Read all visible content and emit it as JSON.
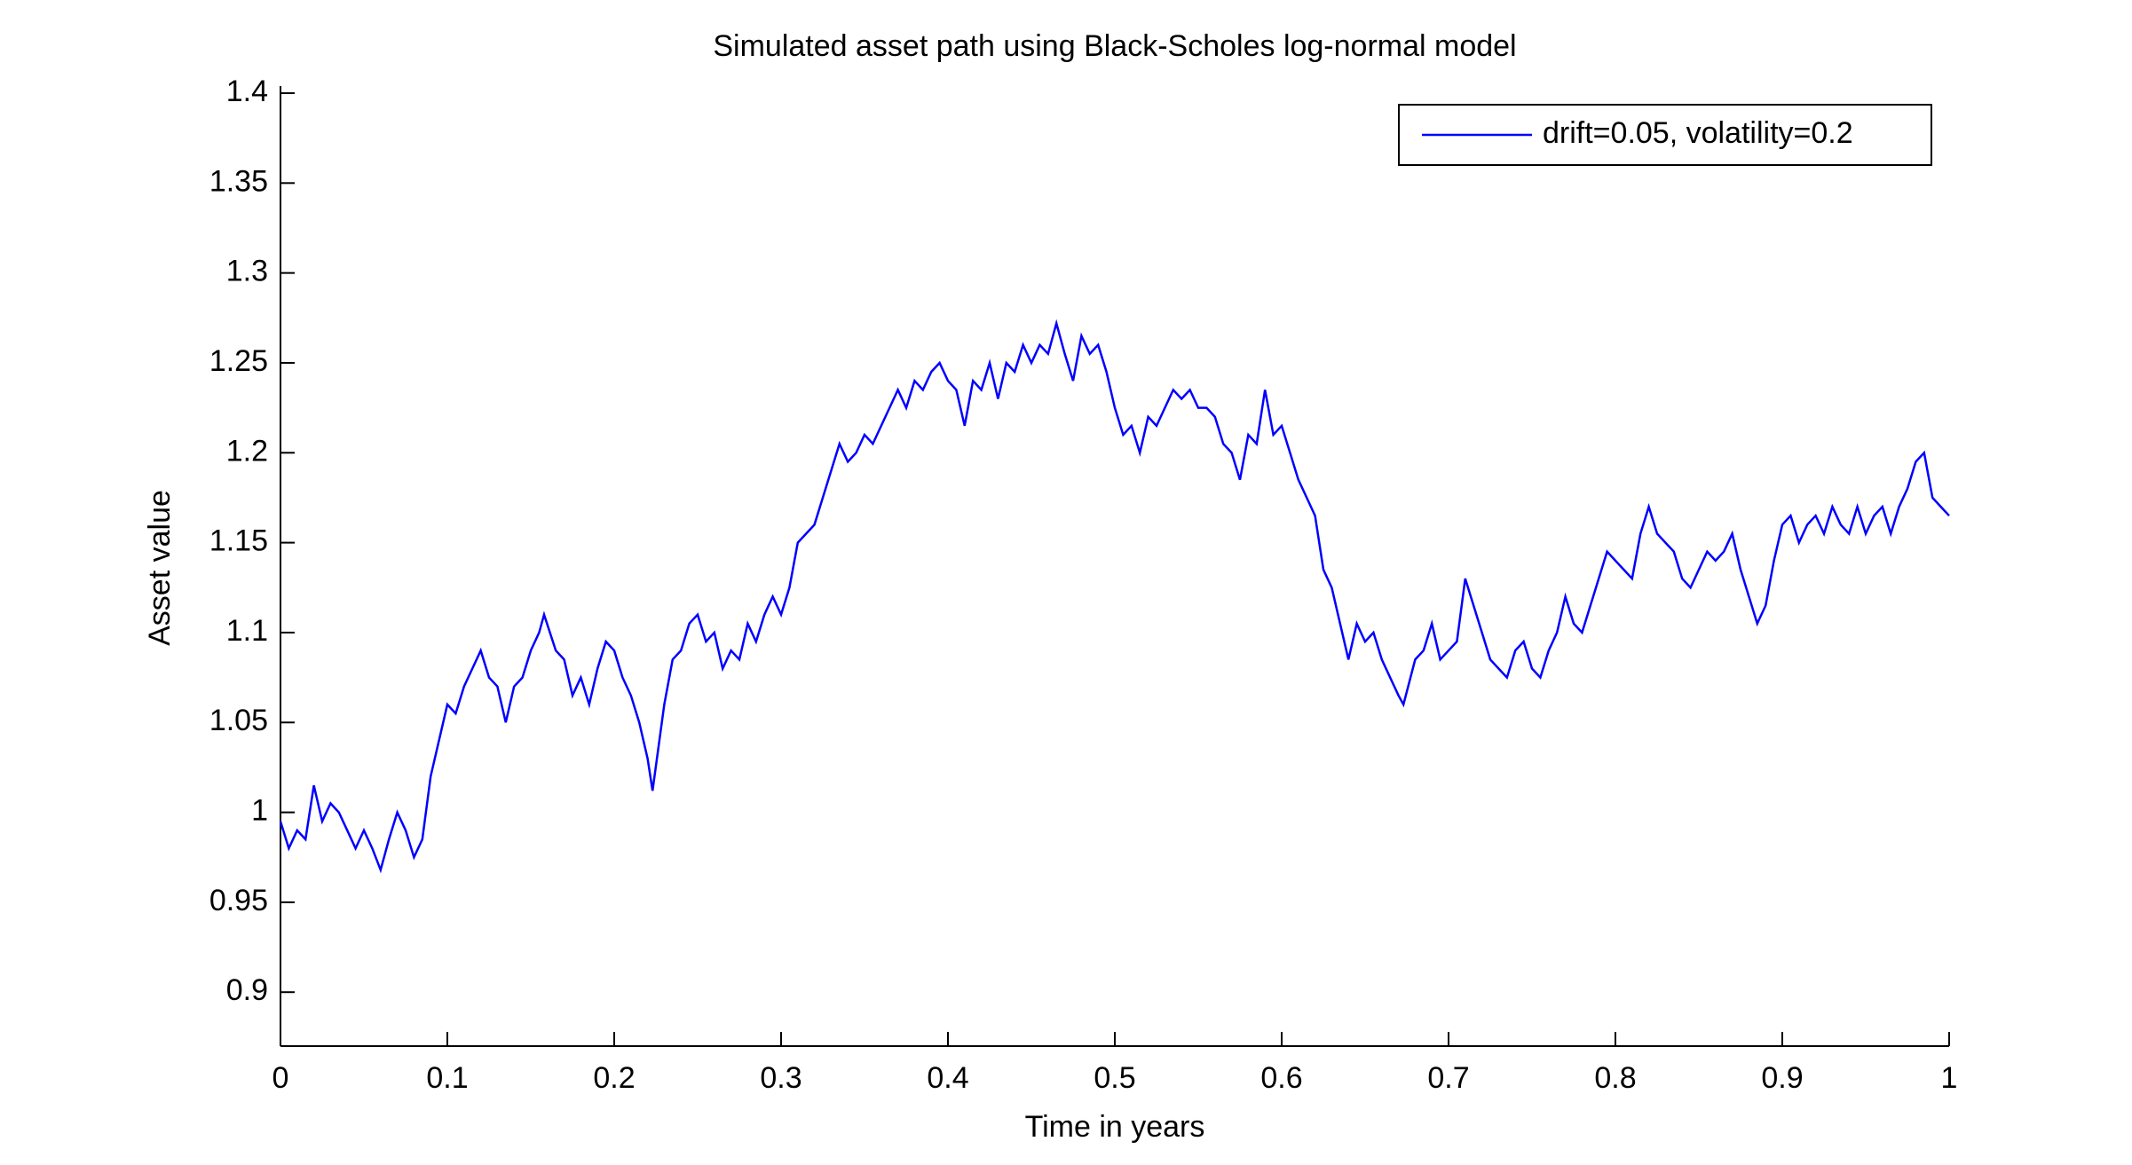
{
  "chart_data": {
    "type": "line",
    "title": "Simulated asset path using Black-Scholes log-normal model",
    "x_label": "Time in years",
    "y_label": "Asset value",
    "legend": "northeast",
    "xlim": [
      0,
      1
    ],
    "xticks": [
      0,
      0.1,
      0.2,
      0.3,
      0.4,
      0.5,
      0.6,
      0.7,
      0.8,
      0.9,
      1
    ],
    "ylim": [
      0.87,
      1.4
    ],
    "yticks": [
      0.9,
      0.95,
      1,
      1.05,
      1.1,
      1.15,
      1.2,
      1.25,
      1.3,
      1.35,
      1.4
    ],
    "x": [
      0,
      0.005,
      0.01,
      0.015,
      0.02,
      0.025,
      0.03,
      0.035,
      0.04,
      0.045,
      0.05,
      0.055,
      0.06,
      0.065,
      0.07,
      0.075,
      0.08,
      0.085,
      0.09,
      0.1,
      0.105,
      0.11,
      0.115,
      0.12,
      0.125,
      0.13,
      0.135,
      0.14,
      0.145,
      0.15,
      0.155,
      0.158,
      0.165,
      0.17,
      0.175,
      0.18,
      0.185,
      0.19,
      0.195,
      0.2,
      0.205,
      0.21,
      0.215,
      0.22,
      0.223,
      0.23,
      0.235,
      0.24,
      0.245,
      0.25,
      0.255,
      0.26,
      0.265,
      0.27,
      0.275,
      0.28,
      0.285,
      0.29,
      0.295,
      0.3,
      0.305,
      0.31,
      0.315,
      0.32,
      0.325,
      0.33,
      0.335,
      0.34,
      0.345,
      0.35,
      0.355,
      0.36,
      0.365,
      0.37,
      0.375,
      0.38,
      0.385,
      0.39,
      0.395,
      0.4,
      0.405,
      0.41,
      0.415,
      0.42,
      0.425,
      0.43,
      0.435,
      0.44,
      0.445,
      0.45,
      0.455,
      0.46,
      0.465,
      0.47,
      0.475,
      0.48,
      0.485,
      0.49,
      0.495,
      0.5,
      0.505,
      0.51,
      0.515,
      0.52,
      0.525,
      0.53,
      0.535,
      0.54,
      0.545,
      0.55,
      0.555,
      0.56,
      0.565,
      0.57,
      0.575,
      0.58,
      0.585,
      0.59,
      0.595,
      0.6,
      0.605,
      0.61,
      0.615,
      0.62,
      0.625,
      0.63,
      0.635,
      0.64,
      0.645,
      0.65,
      0.655,
      0.66,
      0.665,
      0.67,
      0.673,
      0.68,
      0.685,
      0.69,
      0.695,
      0.7,
      0.705,
      0.71,
      0.715,
      0.72,
      0.725,
      0.73,
      0.735,
      0.74,
      0.745,
      0.75,
      0.755,
      0.76,
      0.765,
      0.77,
      0.775,
      0.78,
      0.785,
      0.79,
      0.795,
      0.8,
      0.805,
      0.81,
      0.815,
      0.82,
      0.825,
      0.83,
      0.835,
      0.84,
      0.845,
      0.85,
      0.855,
      0.86,
      0.865,
      0.87,
      0.875,
      0.88,
      0.885,
      0.89,
      0.895,
      0.9,
      0.905,
      0.91,
      0.915,
      0.92,
      0.925,
      0.93,
      0.935,
      0.94,
      0.945,
      0.95,
      0.955,
      0.96,
      0.965,
      0.97,
      0.975,
      0.98,
      0.985,
      0.99,
      0.995,
      1
    ],
    "series": [
      {
        "name": "drift=0.05, volatility=0.2",
        "color": "#0000ff",
        "values": [
          0.995,
          0.98,
          0.99,
          0.985,
          1.015,
          0.995,
          1.005,
          1.0,
          0.99,
          0.98,
          0.99,
          0.98,
          0.968,
          0.985,
          1.0,
          0.99,
          0.975,
          0.985,
          1.02,
          1.06,
          1.055,
          1.07,
          1.08,
          1.09,
          1.075,
          1.07,
          1.05,
          1.07,
          1.075,
          1.09,
          1.1,
          1.11,
          1.09,
          1.085,
          1.065,
          1.075,
          1.06,
          1.08,
          1.095,
          1.09,
          1.075,
          1.065,
          1.05,
          1.03,
          1.012,
          1.06,
          1.085,
          1.09,
          1.105,
          1.11,
          1.095,
          1.1,
          1.08,
          1.09,
          1.085,
          1.105,
          1.095,
          1.11,
          1.12,
          1.11,
          1.125,
          1.15,
          1.155,
          1.16,
          1.175,
          1.19,
          1.205,
          1.195,
          1.2,
          1.21,
          1.205,
          1.215,
          1.225,
          1.235,
          1.225,
          1.24,
          1.235,
          1.245,
          1.25,
          1.24,
          1.235,
          1.215,
          1.24,
          1.235,
          1.25,
          1.23,
          1.25,
          1.245,
          1.26,
          1.25,
          1.26,
          1.255,
          1.272,
          1.255,
          1.24,
          1.265,
          1.255,
          1.26,
          1.245,
          1.225,
          1.21,
          1.215,
          1.2,
          1.22,
          1.215,
          1.225,
          1.235,
          1.23,
          1.235,
          1.225,
          1.225,
          1.22,
          1.205,
          1.2,
          1.185,
          1.21,
          1.205,
          1.235,
          1.21,
          1.215,
          1.2,
          1.185,
          1.175,
          1.165,
          1.135,
          1.125,
          1.105,
          1.085,
          1.105,
          1.095,
          1.1,
          1.085,
          1.075,
          1.065,
          1.06,
          1.085,
          1.09,
          1.105,
          1.085,
          1.09,
          1.095,
          1.13,
          1.115,
          1.1,
          1.085,
          1.08,
          1.075,
          1.09,
          1.095,
          1.08,
          1.075,
          1.09,
          1.1,
          1.12,
          1.105,
          1.1,
          1.115,
          1.13,
          1.145,
          1.14,
          1.135,
          1.13,
          1.155,
          1.17,
          1.155,
          1.15,
          1.145,
          1.13,
          1.125,
          1.135,
          1.145,
          1.14,
          1.145,
          1.155,
          1.135,
          1.12,
          1.105,
          1.115,
          1.14,
          1.16,
          1.165,
          1.15,
          1.16,
          1.165,
          1.155,
          1.17,
          1.16,
          1.155,
          1.17,
          1.155,
          1.165,
          1.17,
          1.155,
          1.17,
          1.18,
          1.195,
          1.2,
          1.175,
          1.17,
          1.165
        ]
      }
    ]
  }
}
